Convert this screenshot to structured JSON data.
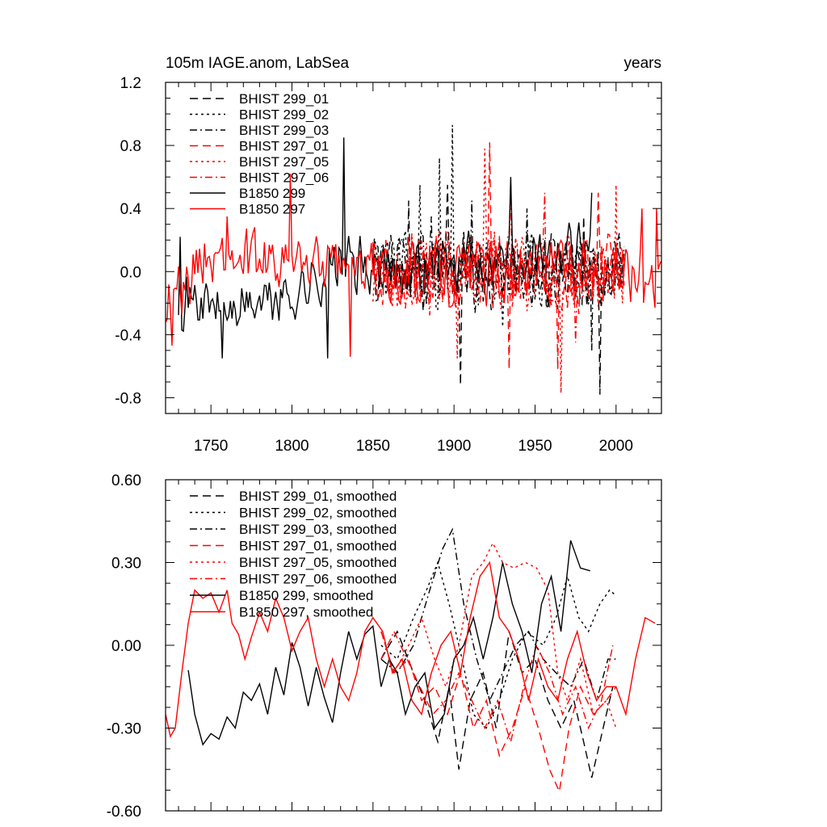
{
  "chart_data": [
    {
      "type": "line",
      "title": "105m IAGE.anom, LabSea",
      "title_right": "years",
      "xlim": [
        1722,
        2028
      ],
      "ylim": [
        -0.9,
        1.2
      ],
      "yticks": [
        "1.2",
        "0.8",
        "0.4",
        "0.0",
        "-0.4",
        "-0.8"
      ],
      "ytick_values": [
        1.2,
        0.8,
        0.4,
        0.0,
        -0.4,
        -0.8
      ],
      "xticks": [
        "1750",
        "1800",
        "1850",
        "1900",
        "1950",
        "2000"
      ],
      "xtick_values": [
        1750,
        1800,
        1850,
        1900,
        1950,
        2000
      ],
      "legend_position": "top-left",
      "series": [
        {
          "name": "BHIST 299_01",
          "color": "#000000",
          "dash": "long-dash",
          "start": 1850,
          "end": 2005,
          "amplitude": 0.28,
          "seed": 11,
          "peaks": [
            [
              1872,
              0.45
            ],
            [
              1896,
              0.55
            ],
            [
              1904,
              -0.72
            ],
            [
              1990,
              -0.78
            ],
            [
              1980,
              0.35
            ]
          ]
        },
        {
          "name": "BHIST 299_02",
          "color": "#000000",
          "dash": "dot",
          "start": 1850,
          "end": 2005,
          "amplitude": 0.28,
          "seed": 23,
          "peaks": [
            [
              1879,
              0.55
            ],
            [
              1891,
              0.72
            ],
            [
              1899,
              0.93
            ],
            [
              1930,
              -0.35
            ]
          ]
        },
        {
          "name": "BHIST 299_03",
          "color": "#000000",
          "dash": "dash-dot",
          "start": 1850,
          "end": 2005,
          "amplitude": 0.28,
          "seed": 37,
          "peaks": [
            [
              1886,
              0.35
            ],
            [
              1911,
              0.45
            ],
            [
              1945,
              0.4
            ],
            [
              1985,
              -0.5
            ]
          ]
        },
        {
          "name": "BHIST 297_01",
          "color": "#ff0000",
          "dash": "long-dash",
          "start": 1850,
          "end": 2005,
          "amplitude": 0.3,
          "seed": 41,
          "peaks": [
            [
              1922,
              0.82
            ],
            [
              1934,
              -0.62
            ],
            [
              1964,
              -0.62
            ],
            [
              1989,
              0.5
            ]
          ]
        },
        {
          "name": "BHIST 297_05",
          "color": "#ff0000",
          "dash": "dot",
          "start": 1850,
          "end": 2005,
          "amplitude": 0.3,
          "seed": 53,
          "peaks": [
            [
              1902,
              -0.55
            ],
            [
              1919,
              0.78
            ],
            [
              1966,
              -0.77
            ],
            [
              2000,
              0.55
            ]
          ]
        },
        {
          "name": "BHIST 297_06",
          "color": "#ff0000",
          "dash": "dash-dot",
          "start": 1850,
          "end": 2005,
          "amplitude": 0.3,
          "seed": 67,
          "peaks": [
            [
              1935,
              0.55
            ],
            [
              1956,
              0.5
            ],
            [
              1975,
              -0.45
            ]
          ]
        },
        {
          "name": "B1850 299",
          "color": "#000000",
          "dash": "solid",
          "start": 1730,
          "end": 1985,
          "amplitude": 0.22,
          "seed": 71,
          "peaks": [
            [
              1731,
              0.22
            ],
            [
              1757,
              -0.55
            ],
            [
              1822,
              -0.55
            ],
            [
              1832,
              0.85
            ],
            [
              1935,
              0.6
            ],
            [
              1985,
              0.5
            ]
          ],
          "trend": [
            [
              1730,
              -0.15
            ],
            [
              1760,
              -0.25
            ],
            [
              1800,
              -0.15
            ],
            [
              1830,
              0.05
            ],
            [
              1850,
              0.0
            ],
            [
              1900,
              0.05
            ],
            [
              1985,
              0.2
            ]
          ]
        },
        {
          "name": "B1850 297",
          "color": "#ff0000",
          "dash": "solid",
          "start": 1722,
          "end": 2028,
          "amplitude": 0.24,
          "seed": 89,
          "peaks": [
            [
              1726,
              -0.47
            ],
            [
              1760,
              0.35
            ],
            [
              1799,
              0.62
            ],
            [
              1836,
              -0.54
            ],
            [
              2016,
              0.4
            ],
            [
              2025,
              0.4
            ]
          ],
          "trend": [
            [
              1722,
              -0.2
            ],
            [
              1745,
              0.1
            ],
            [
              1770,
              0.05
            ],
            [
              1800,
              0.05
            ],
            [
              1850,
              0.0
            ],
            [
              1950,
              0.0
            ],
            [
              2028,
              0.0
            ]
          ]
        }
      ]
    },
    {
      "type": "line",
      "title": "",
      "xlim": [
        1722,
        2028
      ],
      "ylim": [
        -0.6,
        0.6
      ],
      "yticks": [
        "0.60",
        "0.30",
        "0.00",
        "-0.30",
        "-0.60"
      ],
      "ytick_values": [
        0.6,
        0.3,
        0.0,
        -0.3,
        -0.6
      ],
      "xtick_values": [
        1750,
        1800,
        1850,
        1900,
        1950,
        2000
      ],
      "legend_position": "top-left",
      "series": [
        {
          "name": "BHIST 299_01, smoothed",
          "color": "#000000",
          "dash": "long-dash",
          "x": [
            1855,
            1865,
            1875,
            1882,
            1890,
            1897,
            1903,
            1910,
            1918,
            1926,
            1934,
            1942,
            1950,
            1958,
            1966,
            1974,
            1980,
            1985,
            1992,
            1998
          ],
          "y": [
            -0.05,
            0.05,
            -0.1,
            -0.2,
            -0.35,
            -0.15,
            -0.45,
            -0.2,
            -0.1,
            -0.3,
            0.05,
            -0.1,
            -0.05,
            -0.2,
            -0.3,
            -0.2,
            -0.35,
            -0.48,
            -0.3,
            -0.15
          ]
        },
        {
          "name": "BHIST 299_02, smoothed",
          "color": "#000000",
          "dash": "dot",
          "x": [
            1855,
            1865,
            1875,
            1883,
            1890,
            1897,
            1905,
            1912,
            1920,
            1928,
            1936,
            1945,
            1955,
            1963,
            1970,
            1977,
            1983,
            1990,
            1996,
            2000
          ],
          "y": [
            0.0,
            -0.05,
            0.1,
            0.2,
            0.3,
            0.15,
            -0.05,
            -0.25,
            -0.3,
            -0.2,
            -0.05,
            0.05,
            0.0,
            0.1,
            0.25,
            0.1,
            0.05,
            0.15,
            0.2,
            0.18
          ]
        },
        {
          "name": "BHIST 299_03, smoothed",
          "color": "#000000",
          "dash": "dash-dot",
          "x": [
            1855,
            1865,
            1875,
            1885,
            1893,
            1899,
            1906,
            1914,
            1922,
            1930,
            1938,
            1946,
            1955,
            1963,
            1972,
            1980,
            1988,
            1995,
            2000
          ],
          "y": [
            -0.05,
            -0.1,
            0.0,
            0.2,
            0.35,
            0.42,
            0.15,
            -0.05,
            -0.2,
            -0.1,
            0.0,
            0.05,
            -0.05,
            -0.1,
            -0.15,
            -0.05,
            -0.2,
            -0.05,
            -0.05
          ]
        },
        {
          "name": "BHIST 297_01, smoothed",
          "color": "#ff0000",
          "dash": "long-dash",
          "x": [
            1855,
            1863,
            1872,
            1880,
            1888,
            1896,
            1904,
            1912,
            1920,
            1928,
            1936,
            1944,
            1952,
            1959,
            1965,
            1971,
            1978,
            1986,
            1994,
            2000
          ],
          "y": [
            0.05,
            -0.1,
            -0.05,
            -0.2,
            -0.15,
            -0.25,
            -0.1,
            -0.3,
            -0.2,
            -0.4,
            -0.3,
            -0.15,
            -0.3,
            -0.45,
            -0.53,
            -0.3,
            -0.15,
            -0.25,
            -0.2,
            -0.15
          ]
        },
        {
          "name": "BHIST 297_05, smoothed",
          "color": "#ff0000",
          "dash": "dot",
          "x": [
            1855,
            1863,
            1872,
            1880,
            1888,
            1895,
            1903,
            1911,
            1918,
            1924,
            1930,
            1937,
            1944,
            1951,
            1958,
            1964,
            1970,
            1978,
            1986,
            1994,
            2000
          ],
          "y": [
            0.05,
            -0.1,
            0.0,
            0.1,
            -0.05,
            -0.15,
            0.0,
            0.25,
            0.3,
            0.37,
            0.3,
            0.28,
            0.3,
            0.28,
            0.2,
            -0.1,
            -0.2,
            -0.05,
            -0.25,
            -0.2,
            -0.3
          ]
        },
        {
          "name": "BHIST 297_06, smoothed",
          "color": "#ff0000",
          "dash": "dash-dot",
          "x": [
            1855,
            1863,
            1871,
            1879,
            1887,
            1895,
            1903,
            1911,
            1919,
            1927,
            1935,
            1943,
            1951,
            1959,
            1967,
            1975,
            1983,
            1991,
            1998
          ],
          "y": [
            -0.05,
            0.05,
            -0.05,
            -0.15,
            -0.25,
            -0.2,
            -0.1,
            -0.2,
            -0.3,
            -0.2,
            -0.35,
            -0.15,
            0.0,
            -0.1,
            -0.25,
            -0.15,
            -0.3,
            -0.2,
            0.0
          ]
        },
        {
          "name": "B1850 299, smoothed",
          "color": "#000000",
          "dash": "solid",
          "x": [
            1736,
            1740,
            1745,
            1750,
            1755,
            1760,
            1765,
            1770,
            1775,
            1780,
            1785,
            1790,
            1795,
            1800,
            1805,
            1810,
            1815,
            1820,
            1825,
            1830,
            1835,
            1840,
            1845,
            1850,
            1855,
            1860,
            1865,
            1870,
            1876,
            1882,
            1888,
            1894,
            1900,
            1906,
            1912,
            1918,
            1924,
            1930,
            1936,
            1942,
            1948,
            1954,
            1960,
            1966,
            1972,
            1978,
            1984
          ],
          "y": [
            -0.09,
            -0.25,
            -0.36,
            -0.32,
            -0.34,
            -0.26,
            -0.3,
            -0.17,
            -0.2,
            -0.14,
            -0.25,
            -0.08,
            -0.18,
            0.01,
            -0.08,
            -0.22,
            -0.08,
            -0.19,
            -0.28,
            -0.1,
            0.05,
            -0.05,
            0.04,
            0.07,
            -0.15,
            -0.05,
            -0.1,
            -0.25,
            -0.15,
            -0.1,
            -0.3,
            -0.25,
            -0.05,
            0.0,
            0.1,
            -0.05,
            0.1,
            0.3,
            0.15,
            0.05,
            -0.1,
            0.15,
            0.25,
            0.05,
            0.38,
            0.28,
            0.27
          ]
        },
        {
          "name": "B1850 297, smoothed",
          "color": "#ff0000",
          "dash": "solid",
          "x": [
            1722,
            1725,
            1728,
            1732,
            1736,
            1740,
            1745,
            1750,
            1755,
            1760,
            1763,
            1767,
            1771,
            1775,
            1780,
            1785,
            1790,
            1795,
            1800,
            1805,
            1810,
            1815,
            1820,
            1825,
            1830,
            1835,
            1840,
            1845,
            1850,
            1856,
            1862,
            1868,
            1874,
            1880,
            1886,
            1892,
            1898,
            1904,
            1910,
            1916,
            1922,
            1928,
            1934,
            1940,
            1946,
            1952,
            1958,
            1964,
            1970,
            1976,
            1982,
            1988,
            1994,
            2000,
            2006,
            2012,
            2018,
            2024
          ],
          "y": [
            -0.25,
            -0.33,
            -0.3,
            -0.1,
            0.08,
            0.2,
            0.17,
            0.19,
            0.12,
            0.2,
            0.08,
            0.04,
            -0.05,
            0.03,
            0.12,
            0.05,
            0.17,
            0.1,
            -0.02,
            0.05,
            0.1,
            -0.05,
            -0.15,
            -0.05,
            -0.15,
            -0.2,
            -0.1,
            0.05,
            0.1,
            0.05,
            -0.1,
            -0.05,
            -0.2,
            -0.25,
            -0.1,
            0.0,
            0.05,
            -0.1,
            0.1,
            0.25,
            0.3,
            0.1,
            0.05,
            -0.05,
            -0.2,
            -0.05,
            -0.15,
            -0.2,
            -0.05,
            0.05,
            -0.1,
            -0.2,
            -0.15,
            -0.15,
            -0.25,
            -0.05,
            0.1,
            0.08
          ]
        }
      ]
    }
  ]
}
